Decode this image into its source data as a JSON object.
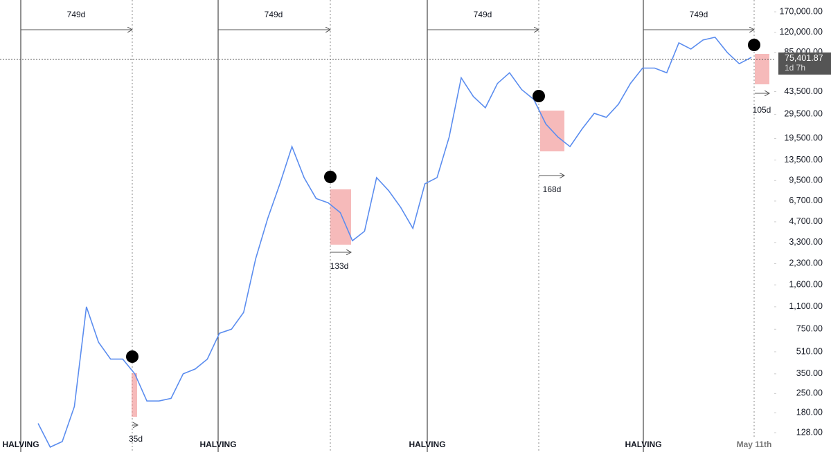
{
  "chart_data": {
    "type": "line",
    "log_scale": true,
    "color": "#5b8def",
    "values": [
      150,
      100,
      110,
      200,
      1100,
      600,
      450,
      450,
      350,
      220,
      220,
      230,
      350,
      380,
      450,
      700,
      750,
      1000,
      2500,
      5000,
      9000,
      17000,
      10000,
      7000,
      6500,
      5500,
      3400,
      4000,
      10000,
      8000,
      6000,
      4200,
      9000,
      10000,
      20000,
      55000,
      40000,
      33000,
      50000,
      60000,
      45000,
      38000,
      25000,
      20000,
      17000,
      23000,
      30000,
      28000,
      35000,
      50000,
      65000,
      65000,
      60000,
      100000,
      90000,
      105000,
      110000,
      85000,
      70000,
      78000
    ],
    "ylim": [
      92,
      208000
    ],
    "yticks": [
      {
        "value": 170000,
        "label": "170,000.00"
      },
      {
        "value": 120000,
        "label": "120,000.00"
      },
      {
        "value": 85000,
        "label": "85,000.00"
      },
      {
        "value": 43500,
        "label": "43,500.00"
      },
      {
        "value": 29500,
        "label": "29,500.00"
      },
      {
        "value": 19500,
        "label": "19,500.00"
      },
      {
        "value": 13500,
        "label": "13,500.00"
      },
      {
        "value": 9500,
        "label": "9,500.00"
      },
      {
        "value": 6700,
        "label": "6,700.00"
      },
      {
        "value": 4700,
        "label": "4,700.00"
      },
      {
        "value": 3300,
        "label": "3,300.00"
      },
      {
        "value": 2300,
        "label": "2,300.00"
      },
      {
        "value": 1600,
        "label": "1,600.00"
      },
      {
        "value": 1100,
        "label": "1,100.00"
      },
      {
        "value": 750,
        "label": "750.00"
      },
      {
        "value": 510,
        "label": "510.00"
      },
      {
        "value": 350,
        "label": "350.00"
      },
      {
        "value": 250,
        "label": "250.00"
      },
      {
        "value": 180,
        "label": "180.00"
      },
      {
        "value": 128,
        "label": "128.00"
      }
    ],
    "price_line": {
      "value": 75401.87,
      "label": "75,401.87",
      "countdown": "1d 7h"
    },
    "halving_labels": [
      "HALVING",
      "HALVING",
      "HALVING",
      "HALVING"
    ],
    "cycle_labels": [
      "749d",
      "749d",
      "749d",
      "749d"
    ],
    "drawdown_labels": [
      "35d",
      "133d",
      "168d",
      "105d"
    ],
    "x_label": "May 11th"
  }
}
